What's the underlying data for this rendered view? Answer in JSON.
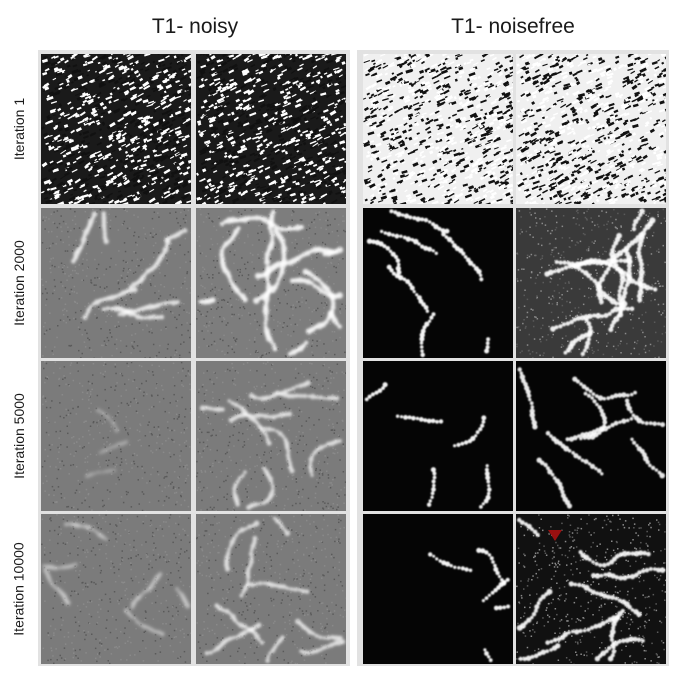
{
  "columns": [
    {
      "title": "T1- noisy"
    },
    {
      "title": "T1- noisefree"
    }
  ],
  "rows": [
    {
      "label": "Iteration 1"
    },
    {
      "label": "Iteration 2000"
    },
    {
      "label": "Iteration 5000"
    },
    {
      "label": "Iteration 10000"
    }
  ],
  "colors": {
    "panel_border": "#e2e2e2",
    "marker": "#9a1010"
  }
}
